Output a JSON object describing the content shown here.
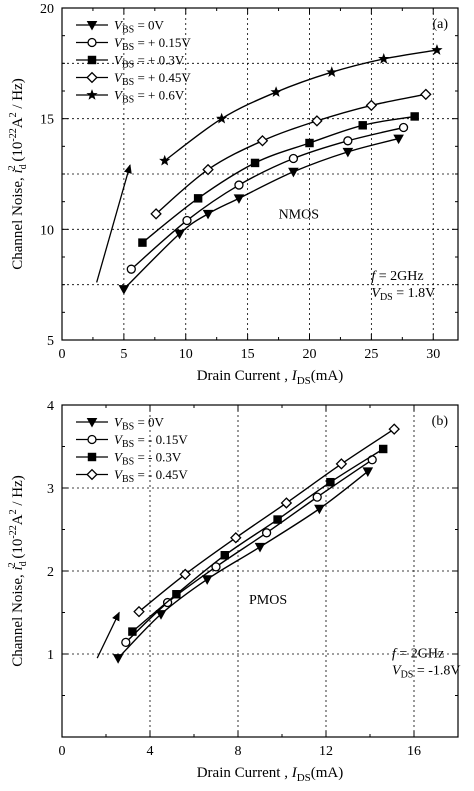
{
  "chart_data": [
    {
      "type": "line",
      "panel_label": "(a)",
      "xlabel": "Drain Current ,",
      "xlabel_var": "I",
      "xlabel_sub": "DS",
      "xlabel_unit": "(mA)",
      "ylabel_parts": [
        "Channel Noise, ",
        "i",
        "d",
        "2",
        " (10",
        "-22",
        "A",
        "2",
        " / Hz)"
      ],
      "xlim": [
        0,
        32
      ],
      "ylim": [
        5,
        20
      ],
      "xticks": [
        0,
        5,
        10,
        15,
        20,
        25,
        30
      ],
      "yticks": [
        5,
        10,
        15,
        20
      ],
      "grid": "dotted",
      "legend_position": "top-left",
      "series": [
        {
          "name": "V_BS = 0V",
          "label_prefix": "V",
          "label_sub": "BS",
          "label_value": " = 0V",
          "marker": "triangle-down",
          "x": [
            5.0,
            9.5,
            11.8,
            14.3,
            18.7,
            23.1,
            27.2
          ],
          "y": [
            7.3,
            9.8,
            10.7,
            11.4,
            12.6,
            13.5,
            14.1
          ]
        },
        {
          "name": "V_BS = + 0.15V",
          "label_prefix": "V",
          "label_sub": "BS",
          "label_value": " = + 0.15V",
          "marker": "circle-open",
          "x": [
            5.6,
            10.1,
            14.3,
            18.7,
            23.1,
            27.6
          ],
          "y": [
            8.2,
            10.4,
            12.0,
            13.2,
            14.0,
            14.6
          ]
        },
        {
          "name": "V_BS = + 0.3V",
          "label_prefix": "V",
          "label_sub": "BS",
          "label_value": " = + 0.3V",
          "marker": "square-filled",
          "x": [
            6.5,
            11.0,
            15.6,
            20.0,
            24.3,
            28.5
          ],
          "y": [
            9.4,
            11.4,
            13.0,
            13.9,
            14.7,
            15.1
          ]
        },
        {
          "name": "V_BS = + 0.45V",
          "label_prefix": "V",
          "label_sub": "BS",
          "label_value": " = + 0.45V",
          "marker": "diamond-open",
          "x": [
            7.6,
            11.8,
            16.2,
            20.6,
            25.0,
            29.4
          ],
          "y": [
            10.7,
            12.7,
            14.0,
            14.9,
            15.6,
            16.1
          ]
        },
        {
          "name": "V_BS = + 0.6V",
          "label_prefix": "V",
          "label_sub": "BS",
          "label_value": " = + 0.6V",
          "marker": "star",
          "x": [
            8.3,
            12.9,
            17.3,
            21.8,
            26.0,
            30.3
          ],
          "y": [
            13.1,
            15.0,
            16.2,
            17.1,
            17.7,
            18.1
          ]
        }
      ],
      "annotations": {
        "device": "NMOS",
        "freq_prefix": "f",
        "freq_value": " = 2GHz",
        "vds_prefix": "V",
        "vds_sub": "DS",
        "vds_value": " = 1.8V"
      },
      "arrow": {
        "from": [
          2.8,
          7.6
        ],
        "to": [
          5.5,
          12.9
        ]
      }
    },
    {
      "type": "line",
      "panel_label": "(b)",
      "xlabel": "Drain Current ,",
      "xlabel_var": "I",
      "xlabel_sub": "DS",
      "xlabel_unit": "(mA)",
      "ylabel_parts": [
        "Channel Noise, ",
        "i",
        "d",
        "2",
        " (10",
        "-22",
        "A",
        "2",
        " / Hz)"
      ],
      "xlim": [
        0,
        18
      ],
      "ylim": [
        0,
        4
      ],
      "xticks": [
        0,
        4,
        8,
        12,
        16
      ],
      "yticks": [
        1,
        2,
        3,
        4
      ],
      "grid": "dotted",
      "legend_position": "top-left",
      "series": [
        {
          "name": "V_BS = 0V",
          "label_prefix": "V",
          "label_sub": "BS",
          "label_value": " = 0V",
          "marker": "triangle-down",
          "x": [
            2.55,
            4.5,
            6.6,
            9.0,
            11.7,
            13.9
          ],
          "y": [
            0.95,
            1.48,
            1.9,
            2.29,
            2.75,
            3.2
          ]
        },
        {
          "name": "V_BS = - 0.15V",
          "label_prefix": "V",
          "label_sub": "BS",
          "label_value": " = - 0.15V",
          "marker": "circle-open",
          "x": [
            2.9,
            4.8,
            7.0,
            9.3,
            11.6,
            14.1
          ],
          "y": [
            1.14,
            1.62,
            2.05,
            2.46,
            2.89,
            3.34
          ]
        },
        {
          "name": "V_BS = - 0.3V",
          "label_prefix": "V",
          "label_sub": "BS",
          "label_value": " = - 0.3V",
          "marker": "square-filled",
          "x": [
            3.2,
            5.2,
            7.4,
            9.8,
            12.2,
            14.6
          ],
          "y": [
            1.27,
            1.72,
            2.19,
            2.62,
            3.07,
            3.47
          ]
        },
        {
          "name": "V_BS = - 0.45V",
          "label_prefix": "V",
          "label_sub": "BS",
          "label_value": " = - 0.45V",
          "marker": "diamond-open",
          "x": [
            3.5,
            5.6,
            7.9,
            10.2,
            12.7,
            15.1
          ],
          "y": [
            1.51,
            1.96,
            2.4,
            2.82,
            3.29,
            3.71
          ]
        }
      ],
      "annotations": {
        "device": "PMOS",
        "freq_prefix": "f",
        "freq_value": " = 2GHz",
        "vds_prefix": "V",
        "vds_sub": "DS",
        "vds_value": " = -1.8V"
      },
      "arrow": {
        "from": [
          1.6,
          0.95
        ],
        "to": [
          2.6,
          1.5
        ]
      }
    }
  ]
}
